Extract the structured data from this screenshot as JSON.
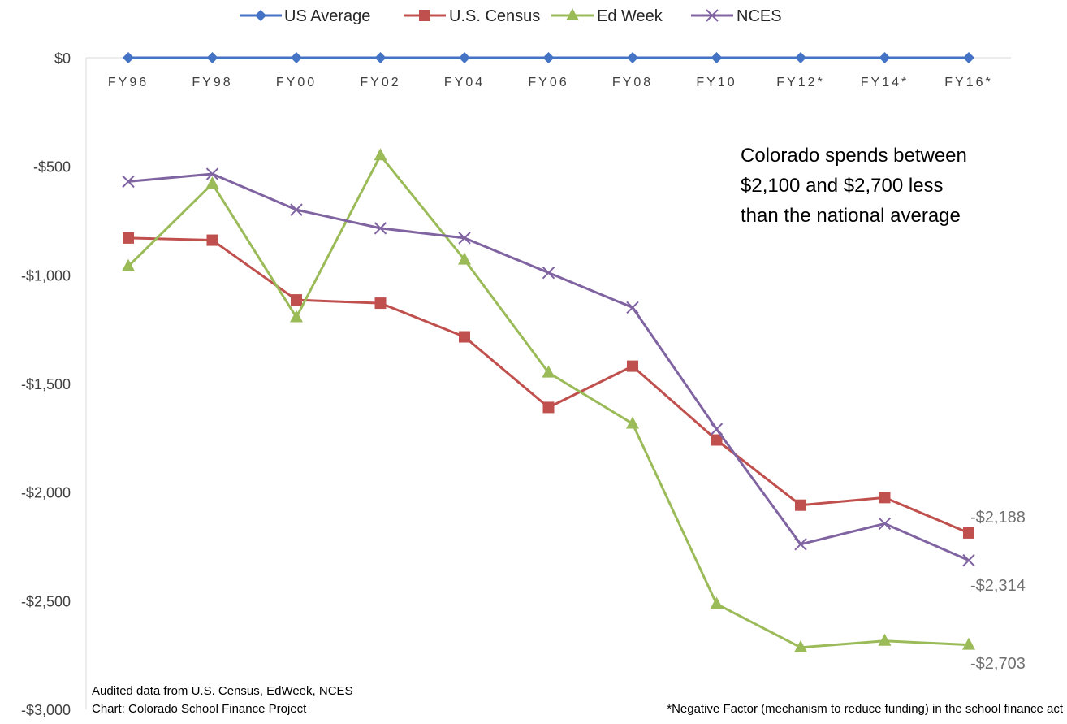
{
  "chart_data": {
    "type": "line",
    "title": "",
    "xlabel": "",
    "ylabel": "",
    "categories": [
      "FY96",
      "FY98",
      "FY00",
      "FY02",
      "FY04",
      "FY06",
      "FY08",
      "FY10",
      "FY12*",
      "FY14*",
      "FY16*"
    ],
    "y_tick_labels": [
      "$0",
      "-$500",
      "-$1,000",
      "-$1,500",
      "-$2,000",
      "-$2,500",
      "-$3,000"
    ],
    "y_tick_values": [
      0,
      -500,
      -1000,
      -1500,
      -2000,
      -2500,
      -3000
    ],
    "ylim": [
      -3000,
      0
    ],
    "grid": false,
    "legend_position": "top",
    "series": [
      {
        "name": "US Average",
        "color": "#4472C4",
        "marker": "diamond",
        "values": [
          0,
          0,
          0,
          0,
          0,
          0,
          0,
          0,
          0,
          0,
          0
        ]
      },
      {
        "name": "U.S. Census",
        "color": "#C0504D",
        "marker": "square",
        "values": [
          -830,
          -840,
          -1115,
          -1130,
          -1285,
          -1610,
          -1420,
          -1760,
          -2060,
          -2025,
          -2188
        ]
      },
      {
        "name": "Ed Week",
        "color": "#9BBB59",
        "marker": "triangle",
        "values": [
          -960,
          -580,
          -1195,
          -450,
          -930,
          -1450,
          -1685,
          -2515,
          -2715,
          -2685,
          -2703
        ]
      },
      {
        "name": "NCES",
        "color": "#8064A2",
        "marker": "x",
        "values": [
          -570,
          -535,
          -700,
          -785,
          -830,
          -990,
          -1150,
          -1710,
          -2240,
          -2145,
          -2314
        ]
      }
    ],
    "end_labels": [
      {
        "series": "U.S. Census",
        "text": "-$2,188"
      },
      {
        "series": "NCES",
        "text": "-$2,314"
      },
      {
        "series": "Ed Week",
        "text": "-$2,703"
      }
    ],
    "annotation": [
      "Colorado spends between",
      "$2,100 and $2,700 less",
      "than the national average"
    ],
    "source_note": [
      "Audited data from U.S. Census, EdWeek, NCES",
      "Chart: Colorado School Finance Project"
    ],
    "footnote": "*Negative Factor (mechanism to reduce funding) in the school finance act"
  }
}
